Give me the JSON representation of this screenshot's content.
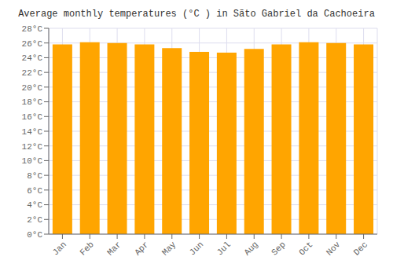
{
  "chart_data": {
    "type": "bar",
    "title": "Average monthly temperatures (°C ) in Sãto Gabriel da Cachoeira",
    "categories": [
      "Jan",
      "Feb",
      "Mar",
      "Apr",
      "May",
      "Jun",
      "Jul",
      "Aug",
      "Sep",
      "Oct",
      "Nov",
      "Dec"
    ],
    "values": [
      25.8,
      26.1,
      26.0,
      25.8,
      25.3,
      24.8,
      24.7,
      25.2,
      25.8,
      26.1,
      26.0,
      25.8
    ],
    "color": "#FFA500",
    "ylim": [
      0,
      28
    ],
    "yticks": [
      {
        "value": 0,
        "label": "0°C"
      },
      {
        "value": 2,
        "label": "2°C"
      },
      {
        "value": 4,
        "label": "4°C"
      },
      {
        "value": 6,
        "label": "6°C"
      },
      {
        "value": 8,
        "label": "8°C"
      },
      {
        "value": 10,
        "label": "10°C"
      },
      {
        "value": 12,
        "label": "12°C"
      },
      {
        "value": 14,
        "label": "14°C"
      },
      {
        "value": 16,
        "label": "16°C"
      },
      {
        "value": 18,
        "label": "18°C"
      },
      {
        "value": 20,
        "label": "20°C"
      },
      {
        "value": 22,
        "label": "22°C"
      },
      {
        "value": 24,
        "label": "24°C"
      },
      {
        "value": 26,
        "label": "26°C"
      },
      {
        "value": 28,
        "label": "28°C"
      }
    ],
    "grid": true
  }
}
